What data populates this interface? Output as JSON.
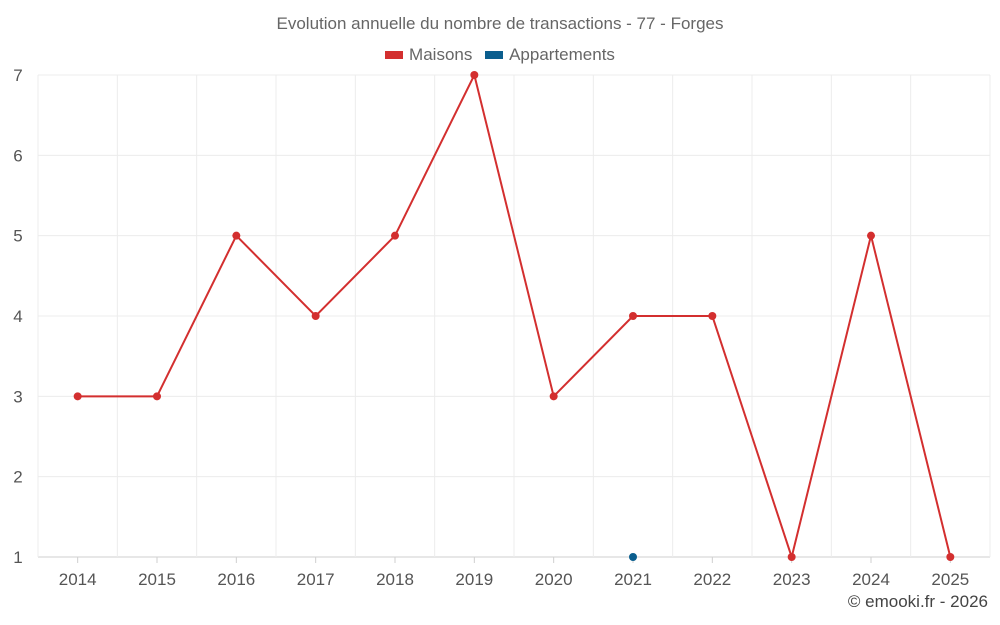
{
  "chart_data": {
    "type": "line",
    "title": "Evolution annuelle du nombre de transactions - 77 - Forges",
    "categories": [
      "2014",
      "2015",
      "2016",
      "2017",
      "2018",
      "2019",
      "2020",
      "2021",
      "2022",
      "2023",
      "2024",
      "2025"
    ],
    "series": [
      {
        "name": "Maisons",
        "color": "#d32f2f",
        "values": [
          3,
          3,
          5,
          4,
          5,
          7,
          3,
          4,
          4,
          1,
          5,
          1
        ]
      },
      {
        "name": "Appartements",
        "color": "#0b5e8e",
        "values": [
          null,
          null,
          null,
          null,
          null,
          null,
          null,
          1,
          null,
          null,
          null,
          null
        ]
      }
    ],
    "ylim": [
      1,
      7
    ],
    "yticks": [
      1,
      2,
      3,
      4,
      5,
      6,
      7
    ],
    "grid": true,
    "legend_position": "top-center"
  },
  "footer": {
    "credit": "© emooki.fr - 2026"
  }
}
